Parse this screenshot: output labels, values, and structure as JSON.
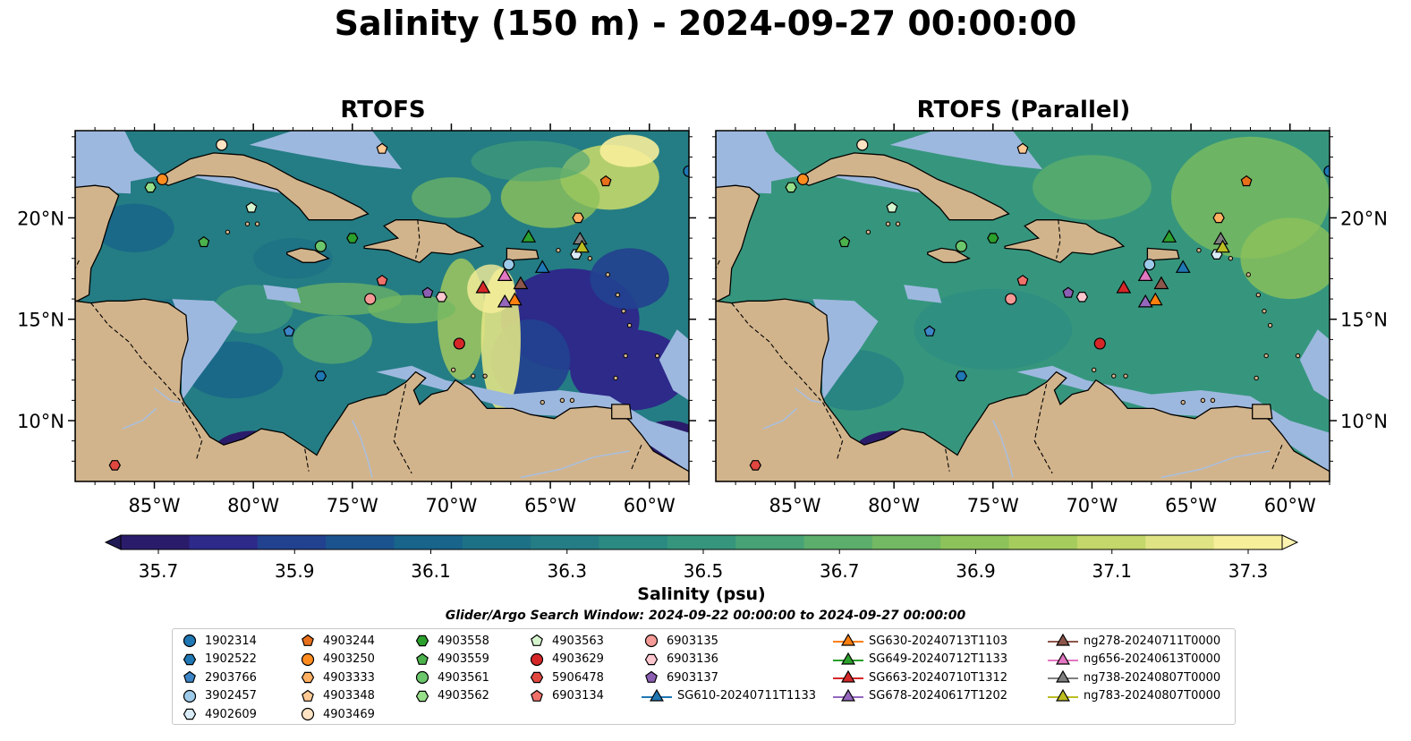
{
  "title": "Salinity (150 m) - 2024-09-27 00:00:00",
  "chart_data": {
    "type": "heatmap",
    "panels": [
      {
        "title": "RTOFS"
      },
      {
        "title": "RTOFS (Parallel)"
      }
    ],
    "lon_ticks": [
      "85°W",
      "80°W",
      "75°W",
      "70°W",
      "65°W",
      "60°W"
    ],
    "lat_ticks": [
      "20°N",
      "15°N",
      "10°N"
    ],
    "lon_range": [
      -89,
      -58
    ],
    "lat_range": [
      7,
      24.3
    ],
    "colorbar": {
      "label": "Salinity (psu)",
      "tick_labels": [
        "35.7",
        "35.9",
        "36.1",
        "36.3",
        "36.5",
        "36.7",
        "36.9",
        "37.1",
        "37.3"
      ],
      "range": [
        35.7,
        37.3
      ],
      "colors": [
        "#2b1c6b",
        "#2d2a8a",
        "#22418f",
        "#1b538e",
        "#18648a",
        "#1d7186",
        "#247d84",
        "#2b8a82",
        "#36967d",
        "#47a276",
        "#5cae6c",
        "#73b862",
        "#8dc25a",
        "#a7cc5e",
        "#c3d76a",
        "#e0e384",
        "#f7ee9a"
      ]
    },
    "search_window": "Glider/Argo Search Window: 2024-09-22 00:00:00 to 2024-09-27 00:00:00",
    "colors": {
      "land": "#d2b48c",
      "shelf": "#9db8df",
      "deep": "#22185e"
    }
  },
  "legend": [
    {
      "label": "1902314",
      "marker": "circle",
      "color": "#1f77b4"
    },
    {
      "label": "1902522",
      "marker": "hexagon",
      "color": "#1f77b4"
    },
    {
      "label": "2903766",
      "marker": "pentagon",
      "color": "#3d85c6"
    },
    {
      "label": "3902457",
      "marker": "circle",
      "color": "#9ecae9"
    },
    {
      "label": "4902609",
      "marker": "hexagon",
      "color": "#d9ecf8"
    },
    {
      "label": "4903244",
      "marker": "pentagon",
      "color": "#e8701a"
    },
    {
      "label": "4903250",
      "marker": "circle",
      "color": "#ff8c1f"
    },
    {
      "label": "4903333",
      "marker": "hexagon",
      "color": "#ffb061"
    },
    {
      "label": "4903348",
      "marker": "pentagon",
      "color": "#ffc994"
    },
    {
      "label": "4903469",
      "marker": "circle",
      "color": "#ffe4c4"
    },
    {
      "label": "4903558",
      "marker": "hexagon",
      "color": "#2ca02c"
    },
    {
      "label": "4903559",
      "marker": "pentagon",
      "color": "#4cb34c"
    },
    {
      "label": "4903561",
      "marker": "circle",
      "color": "#6cc76c"
    },
    {
      "label": "4903562",
      "marker": "hexagon",
      "color": "#98df8a"
    },
    {
      "label": "4903563",
      "marker": "pentagon",
      "color": "#d5f5cf"
    },
    {
      "label": "4903629",
      "marker": "circle",
      "color": "#d62728"
    },
    {
      "label": "5906478",
      "marker": "hexagon",
      "color": "#e0473f"
    },
    {
      "label": "6903134",
      "marker": "pentagon",
      "color": "#f0706a"
    },
    {
      "label": "6903135",
      "marker": "circle",
      "color": "#f59a96"
    },
    {
      "label": "6903136",
      "marker": "hexagon",
      "color": "#fcc7cf"
    },
    {
      "label": "6903137",
      "marker": "pentagon",
      "color": "#8c5fb3"
    },
    {
      "label": "SG610-20240711T1133",
      "marker": "triangle-line",
      "color": "#1f77b4"
    },
    {
      "label": "SG630-20240713T1103",
      "marker": "triangle-line",
      "color": "#ff7f0e"
    },
    {
      "label": "SG649-20240712T1133",
      "marker": "triangle-line",
      "color": "#2ca02c"
    },
    {
      "label": "SG663-20240710T1312",
      "marker": "triangle-line",
      "color": "#d62728"
    },
    {
      "label": "SG678-20240617T1202",
      "marker": "triangle-line",
      "color": "#9467bd"
    },
    {
      "label": "ng278-20240711T0000",
      "marker": "triangle-line",
      "color": "#8c564b"
    },
    {
      "label": "ng656-20240613T0000",
      "marker": "triangle-line",
      "color": "#e377c2"
    },
    {
      "label": "ng738-20240807T0000",
      "marker": "triangle-line",
      "color": "#7f7f7f"
    },
    {
      "label": "ng783-20240807T0000",
      "marker": "triangle-line",
      "color": "#bcbd22"
    }
  ]
}
